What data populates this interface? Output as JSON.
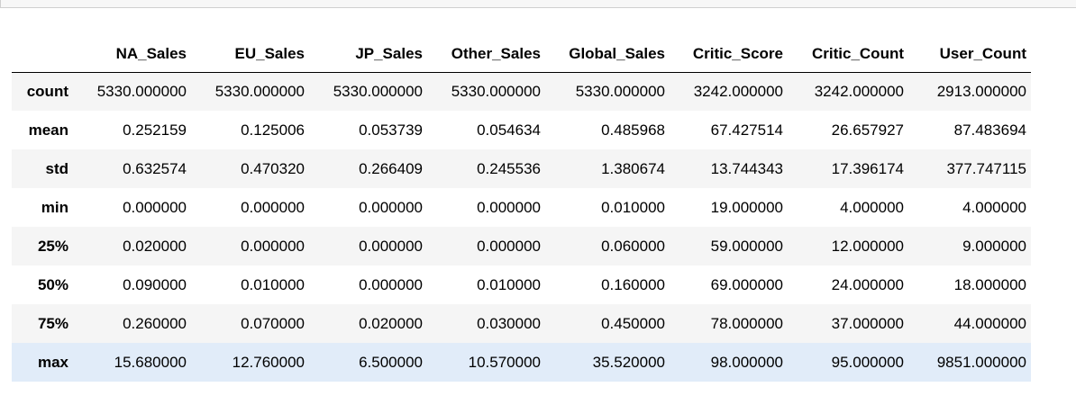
{
  "table": {
    "columns": [
      "NA_Sales",
      "EU_Sales",
      "JP_Sales",
      "Other_Sales",
      "Global_Sales",
      "Critic_Score",
      "Critic_Count",
      "User_Count"
    ],
    "rows": [
      {
        "index": "count",
        "values": [
          "5330.000000",
          "5330.000000",
          "5330.000000",
          "5330.000000",
          "5330.000000",
          "3242.000000",
          "3242.000000",
          "2913.000000"
        ]
      },
      {
        "index": "mean",
        "values": [
          "0.252159",
          "0.125006",
          "0.053739",
          "0.054634",
          "0.485968",
          "67.427514",
          "26.657927",
          "87.483694"
        ]
      },
      {
        "index": "std",
        "values": [
          "0.632574",
          "0.470320",
          "0.266409",
          "0.245536",
          "1.380674",
          "13.744343",
          "17.396174",
          "377.747115"
        ]
      },
      {
        "index": "min",
        "values": [
          "0.000000",
          "0.000000",
          "0.000000",
          "0.000000",
          "0.010000",
          "19.000000",
          "4.000000",
          "4.000000"
        ]
      },
      {
        "index": "25%",
        "values": [
          "0.020000",
          "0.000000",
          "0.000000",
          "0.000000",
          "0.060000",
          "59.000000",
          "12.000000",
          "9.000000"
        ]
      },
      {
        "index": "50%",
        "values": [
          "0.090000",
          "0.010000",
          "0.000000",
          "0.010000",
          "0.160000",
          "69.000000",
          "24.000000",
          "18.000000"
        ]
      },
      {
        "index": "75%",
        "values": [
          "0.260000",
          "0.070000",
          "0.020000",
          "0.030000",
          "0.450000",
          "78.000000",
          "37.000000",
          "44.000000"
        ]
      },
      {
        "index": "max",
        "values": [
          "15.680000",
          "12.760000",
          "6.500000",
          "10.570000",
          "35.520000",
          "98.000000",
          "95.000000",
          "9851.000000"
        ]
      }
    ],
    "hovered_row_index": "max",
    "colors": {
      "odd_row": "#f5f5f5",
      "even_row": "#ffffff",
      "hover_row": "#e1ecf9",
      "header_border": "#000000"
    }
  }
}
